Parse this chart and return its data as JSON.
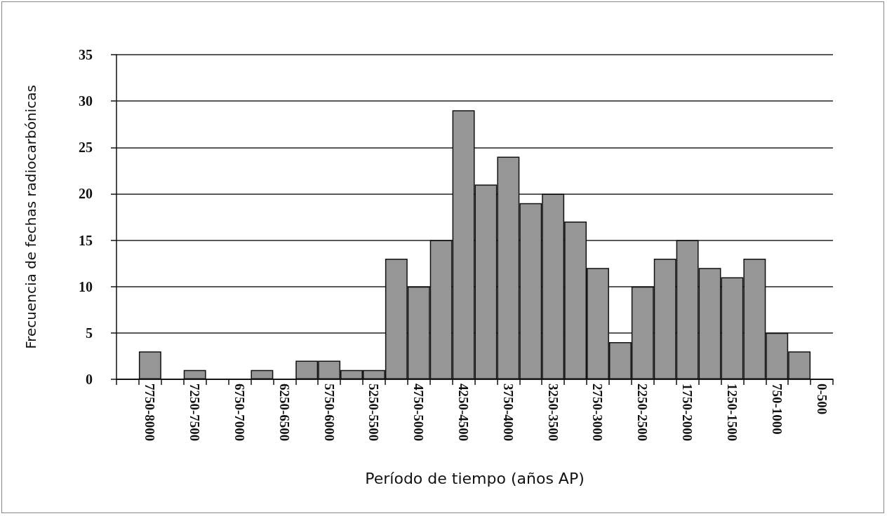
{
  "chart_data": {
    "type": "bar",
    "xlabel": "Período de tiempo (años AP)",
    "ylabel": "Frecuencia de fechas radiocarbónicas",
    "categories": [
      null,
      "7750-8000",
      null,
      "7250-7500",
      null,
      "6750-7000",
      null,
      "6250-6500",
      null,
      "5750-6000",
      null,
      "5250-5500",
      null,
      "4750-5000",
      null,
      "4250-4500",
      null,
      "3750-4000",
      null,
      "3250-3500",
      null,
      "2750-3000",
      null,
      "2250-2500",
      null,
      "1750-2000",
      null,
      "1250-1500",
      null,
      "750-1000",
      null,
      "0-500"
    ],
    "values": [
      0,
      3,
      0,
      1,
      0,
      0,
      1,
      0,
      2,
      2,
      1,
      1,
      13,
      10,
      15,
      29,
      21,
      24,
      19,
      20,
      17,
      12,
      4,
      10,
      13,
      15,
      12,
      11,
      13,
      5,
      3,
      0
    ],
    "color": "#969696",
    "ylim": [
      0,
      35
    ],
    "yticks": [
      0,
      5,
      10,
      15,
      20,
      25,
      30,
      35
    ],
    "grid": "y"
  }
}
